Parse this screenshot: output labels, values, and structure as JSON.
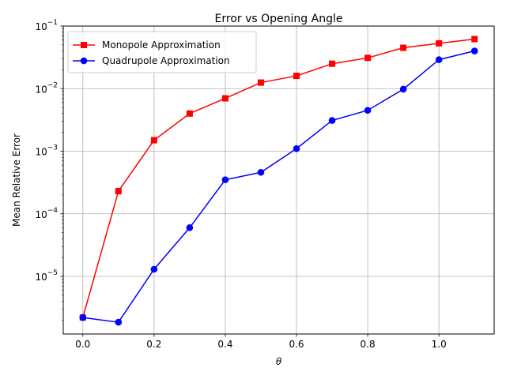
{
  "chart_data": {
    "type": "line",
    "title": "Error vs Opening Angle",
    "xlabel": "θ",
    "ylabel": "Mean Relative Error",
    "yscale": "log",
    "xlim": [
      -0.055,
      1.155
    ],
    "ylim": [
      1.2e-06,
      0.1
    ],
    "grid": true,
    "legend": "top-left",
    "x_ticks": [
      {
        "value": 0.0,
        "label": "0.0"
      },
      {
        "value": 0.2,
        "label": "0.2"
      },
      {
        "value": 0.4,
        "label": "0.4"
      },
      {
        "value": 0.6,
        "label": "0.6"
      },
      {
        "value": 0.8,
        "label": "0.8"
      },
      {
        "value": 1.0,
        "label": "1.0"
      }
    ],
    "y_ticks": [
      {
        "exp": -5,
        "base": "10",
        "power": "−5"
      },
      {
        "exp": -4,
        "base": "10",
        "power": "−4"
      },
      {
        "exp": -3,
        "base": "10",
        "power": "−3"
      },
      {
        "exp": -2,
        "base": "10",
        "power": "−2"
      },
      {
        "exp": -1,
        "base": "10",
        "power": "−1"
      }
    ],
    "x": [
      0.0,
      0.1,
      0.2,
      0.3,
      0.4,
      0.5,
      0.6,
      0.7,
      0.8,
      0.9,
      1.0,
      1.1
    ],
    "series": [
      {
        "name": "Monopole Approximation",
        "color": "#ff0000",
        "marker": "square",
        "values": [
          2.2e-06,
          0.00023,
          0.0015,
          0.004,
          0.007,
          0.0125,
          0.016,
          0.025,
          0.031,
          0.045,
          0.053,
          0.062
        ]
      },
      {
        "name": "Quadrupole Approximation",
        "color": "#0000ff",
        "marker": "circle",
        "values": [
          2.2e-06,
          1.85e-06,
          1.3e-05,
          6e-05,
          0.00035,
          0.00046,
          0.0011,
          0.0031,
          0.0045,
          0.0098,
          0.029,
          0.04
        ]
      }
    ]
  }
}
